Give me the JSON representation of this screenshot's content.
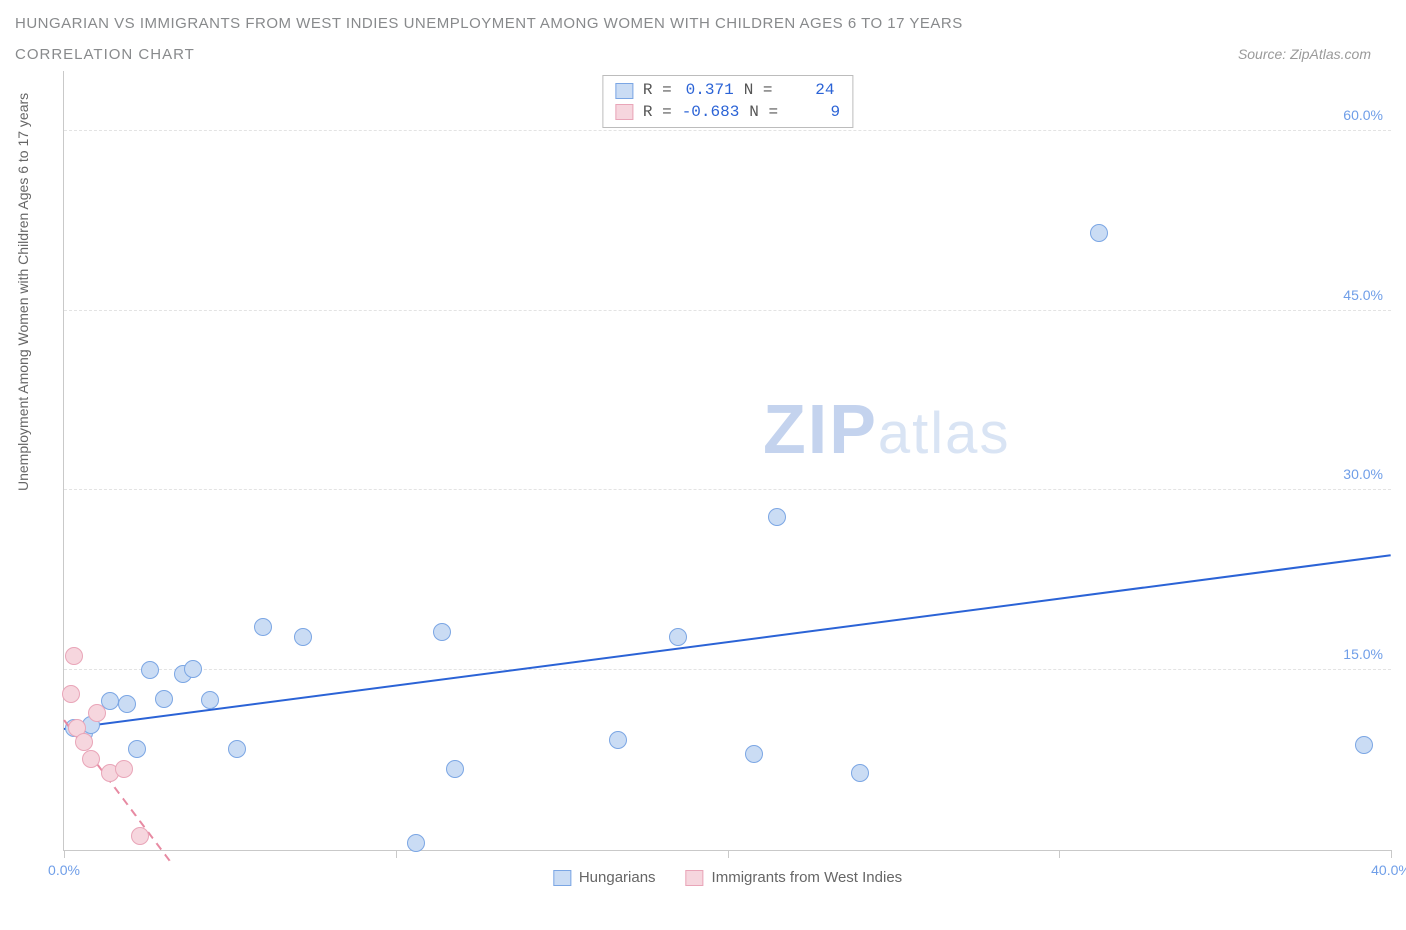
{
  "title": "HUNGARIAN VS IMMIGRANTS FROM WEST INDIES UNEMPLOYMENT AMONG WOMEN WITH CHILDREN AGES 6 TO 17 YEARS",
  "subtitle": "CORRELATION CHART",
  "source": "Source: ZipAtlas.com",
  "y_axis_title": "Unemployment Among Women with Children Ages 6 to 17 years",
  "watermark_a": "ZIP",
  "watermark_b": "atlas",
  "chart": {
    "type": "scatter",
    "xlim": [
      0,
      40
    ],
    "ylim": [
      0,
      65
    ],
    "x_ticks": [
      0,
      10,
      20,
      30,
      40
    ],
    "x_tick_labels": [
      "0.0%",
      "",
      "",
      "",
      "40.0%"
    ],
    "y_ticks": [
      15,
      30,
      45,
      60
    ],
    "y_tick_labels": [
      "15.0%",
      "30.0%",
      "45.0%",
      "60.0%"
    ],
    "grid_color": "#e3e3e3",
    "axis_color": "#c9c9c9",
    "background_color": "#ffffff",
    "series": [
      {
        "name": "Hungarians",
        "color_fill": "#cadcf4",
        "color_stroke": "#7ba6e4",
        "marker_radius": 9,
        "correlation_r": "0.371",
        "correlation_n": "24",
        "trend": {
          "x1": 0,
          "y1": 10.0,
          "x2": 40,
          "y2": 24.5,
          "color": "#2b63d6",
          "width": 2
        },
        "points": [
          {
            "x": 0.3,
            "y": 10.2
          },
          {
            "x": 0.6,
            "y": 9.8
          },
          {
            "x": 0.8,
            "y": 10.4
          },
          {
            "x": 1.4,
            "y": 12.4
          },
          {
            "x": 1.9,
            "y": 12.2
          },
          {
            "x": 2.2,
            "y": 8.4
          },
          {
            "x": 2.6,
            "y": 15.0
          },
          {
            "x": 3.0,
            "y": 12.6
          },
          {
            "x": 3.6,
            "y": 14.7
          },
          {
            "x": 3.9,
            "y": 15.1
          },
          {
            "x": 4.4,
            "y": 12.5
          },
          {
            "x": 5.2,
            "y": 8.4
          },
          {
            "x": 6.0,
            "y": 18.6
          },
          {
            "x": 7.2,
            "y": 17.8
          },
          {
            "x": 10.6,
            "y": 0.6
          },
          {
            "x": 11.4,
            "y": 18.2
          },
          {
            "x": 11.8,
            "y": 6.8
          },
          {
            "x": 16.7,
            "y": 9.2
          },
          {
            "x": 18.5,
            "y": 17.8
          },
          {
            "x": 20.8,
            "y": 8.0
          },
          {
            "x": 21.5,
            "y": 27.8
          },
          {
            "x": 24.0,
            "y": 6.4
          },
          {
            "x": 31.2,
            "y": 51.5
          },
          {
            "x": 39.2,
            "y": 8.8
          }
        ]
      },
      {
        "name": "Immigrants from West Indies",
        "color_fill": "#f6d6de",
        "color_stroke": "#e9a5b8",
        "marker_radius": 9,
        "correlation_r": "-0.683",
        "correlation_n": "9",
        "trend": {
          "x1": 0,
          "y1": 10.8,
          "x2": 3.2,
          "y2": -1.0,
          "color": "#e78aa2",
          "width": 2,
          "dashed": true
        },
        "points": [
          {
            "x": 0.2,
            "y": 13.0
          },
          {
            "x": 0.3,
            "y": 16.2
          },
          {
            "x": 0.4,
            "y": 10.2
          },
          {
            "x": 0.6,
            "y": 9.0
          },
          {
            "x": 0.8,
            "y": 7.6
          },
          {
            "x": 1.0,
            "y": 11.4
          },
          {
            "x": 1.4,
            "y": 6.4
          },
          {
            "x": 1.8,
            "y": 6.8
          },
          {
            "x": 2.3,
            "y": 1.2
          }
        ]
      }
    ],
    "legend": {
      "label_r": "R =",
      "label_n": "N ="
    }
  }
}
